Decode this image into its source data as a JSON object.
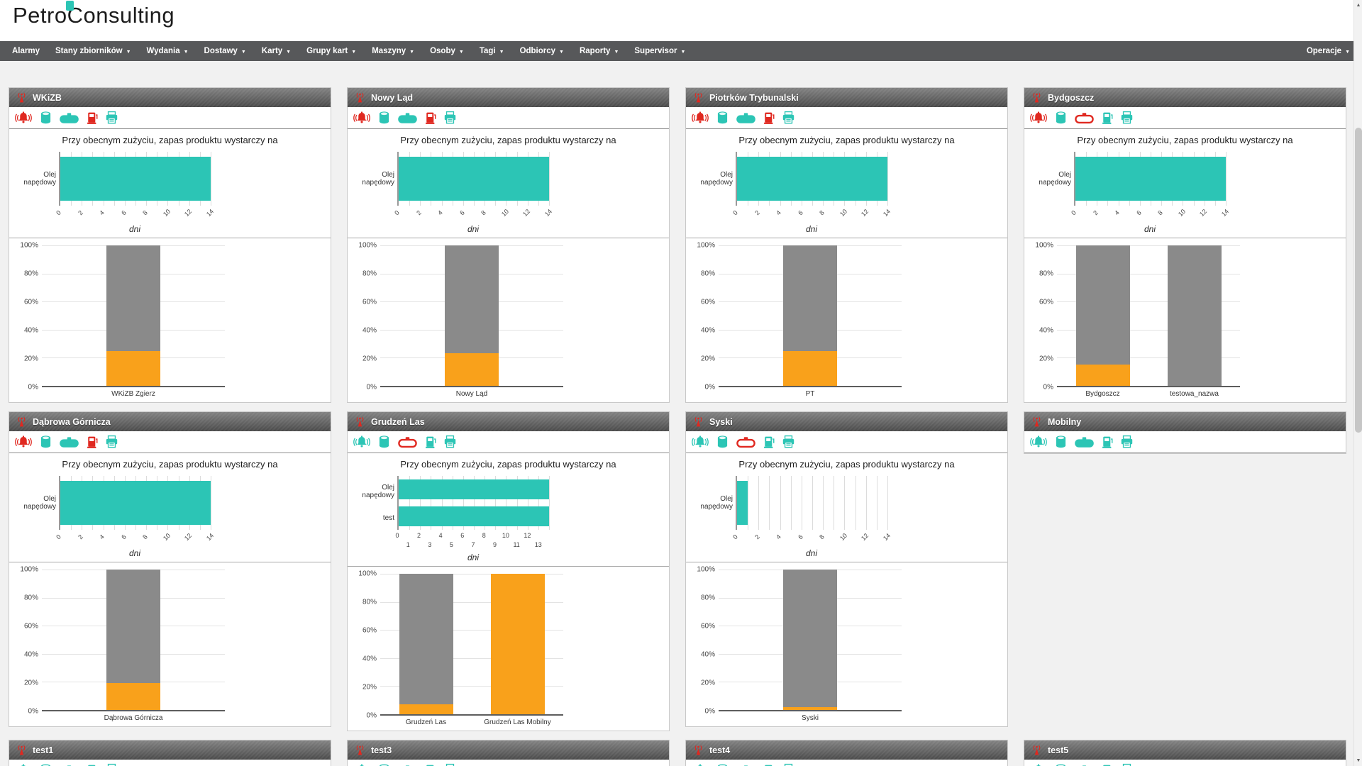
{
  "brand": {
    "name": "PetroConsulting"
  },
  "nav": {
    "caret": "▼",
    "items": [
      {
        "id": "alarmy",
        "label": "Alarmy",
        "dropdown": false
      },
      {
        "id": "stany-zbiornikow",
        "label": "Stany zbiorników",
        "dropdown": true
      },
      {
        "id": "wydania",
        "label": "Wydania",
        "dropdown": true
      },
      {
        "id": "dostawy",
        "label": "Dostawy",
        "dropdown": true
      },
      {
        "id": "karty",
        "label": "Karty",
        "dropdown": true
      },
      {
        "id": "grupy-kart",
        "label": "Grupy kart",
        "dropdown": true
      },
      {
        "id": "maszyny",
        "label": "Maszyny",
        "dropdown": true
      },
      {
        "id": "osoby",
        "label": "Osoby",
        "dropdown": true
      },
      {
        "id": "tagi",
        "label": "Tagi",
        "dropdown": true
      },
      {
        "id": "odbiorcy",
        "label": "Odbiorcy",
        "dropdown": true
      },
      {
        "id": "raporty",
        "label": "Raporty",
        "dropdown": true
      },
      {
        "id": "supervisor",
        "label": "Supervisor",
        "dropdown": true
      }
    ],
    "right_item": {
      "id": "operacje",
      "label": "Operacje",
      "dropdown": true
    }
  },
  "shared": {
    "days_title": "Przy obecnym zużyciu, zapas produktu wystarczy na",
    "days_xlabel": "dni",
    "pct_ticks": [
      "0%",
      "20%",
      "40%",
      "60%",
      "80%",
      "100%"
    ]
  },
  "colors": {
    "teal": "#2cc5b5",
    "orange": "#f9a11b",
    "bar_gray": "#8a8a8a",
    "alert_red": "#e02820",
    "nav_bg": "#57585a"
  },
  "ui": {
    "scroll_up": "▲",
    "scroll_down": "▼"
  },
  "panels": [
    {
      "id": "wkizb",
      "title": "WKiZB",
      "icons": [
        {
          "n": "alarm-bell",
          "c": "red"
        },
        {
          "n": "vertical-tank",
          "c": "teal"
        },
        {
          "n": "horizontal-tank",
          "c": "teal"
        },
        {
          "n": "fuel-dispenser",
          "c": "red"
        },
        {
          "n": "printer",
          "c": "teal"
        }
      ],
      "days_chart": {
        "bars": [
          {
            "label": "Olej napędowy",
            "days": 14
          }
        ],
        "max": 14,
        "ticks": [
          0,
          2,
          4,
          6,
          8,
          10,
          12,
          14
        ],
        "tick_style": "rotated"
      },
      "fill_chart": {
        "bars": [
          {
            "label": "WKiZB Zgierz",
            "pct": 25
          }
        ]
      }
    },
    {
      "id": "nowy-lad",
      "title": "Nowy Ląd",
      "icons": [
        {
          "n": "alarm-bell",
          "c": "red"
        },
        {
          "n": "vertical-tank",
          "c": "teal"
        },
        {
          "n": "horizontal-tank",
          "c": "teal"
        },
        {
          "n": "fuel-dispenser",
          "c": "red"
        },
        {
          "n": "printer",
          "c": "teal"
        }
      ],
      "days_chart": {
        "bars": [
          {
            "label": "Olej napędowy",
            "days": 14
          }
        ],
        "max": 14,
        "ticks": [
          0,
          2,
          4,
          6,
          8,
          10,
          12,
          14
        ],
        "tick_style": "rotated"
      },
      "fill_chart": {
        "bars": [
          {
            "label": "Nowy Ląd",
            "pct": 23
          }
        ]
      }
    },
    {
      "id": "piotrkow-trybunalski",
      "title": "Piotrków Trybunalski",
      "icons": [
        {
          "n": "alarm-bell",
          "c": "red"
        },
        {
          "n": "vertical-tank",
          "c": "teal"
        },
        {
          "n": "horizontal-tank",
          "c": "teal"
        },
        {
          "n": "fuel-dispenser",
          "c": "red"
        },
        {
          "n": "printer",
          "c": "teal"
        }
      ],
      "days_chart": {
        "bars": [
          {
            "label": "Olej napędowy",
            "days": 14
          }
        ],
        "max": 14,
        "ticks": [
          0,
          2,
          4,
          6,
          8,
          10,
          12,
          14
        ],
        "tick_style": "rotated"
      },
      "fill_chart": {
        "bars": [
          {
            "label": "PT",
            "pct": 25
          }
        ]
      }
    },
    {
      "id": "bydgoszcz",
      "title": "Bydgoszcz",
      "icons": [
        {
          "n": "alarm-bell",
          "c": "red"
        },
        {
          "n": "vertical-tank",
          "c": "teal"
        },
        {
          "n": "horizontal-tank",
          "c": "red"
        },
        {
          "n": "fuel-dispenser",
          "c": "teal"
        },
        {
          "n": "printer",
          "c": "teal"
        }
      ],
      "days_chart": {
        "bars": [
          {
            "label": "Olej napędowy",
            "days": 14
          }
        ],
        "max": 14,
        "ticks": [
          0,
          2,
          4,
          6,
          8,
          10,
          12,
          14
        ],
        "tick_style": "rotated"
      },
      "fill_chart": {
        "bars": [
          {
            "label": "Bydgoszcz",
            "pct": 15
          },
          {
            "label": "testowa_nazwa",
            "pct": 0
          }
        ]
      }
    },
    {
      "id": "dabrowa-gornicza",
      "title": "Dąbrowa Górnicza",
      "icons": [
        {
          "n": "alarm-bell",
          "c": "red"
        },
        {
          "n": "vertical-tank",
          "c": "teal"
        },
        {
          "n": "horizontal-tank",
          "c": "teal"
        },
        {
          "n": "fuel-dispenser",
          "c": "red"
        },
        {
          "n": "printer",
          "c": "teal"
        }
      ],
      "days_chart": {
        "bars": [
          {
            "label": "Olej napędowy",
            "days": 14
          }
        ],
        "max": 14,
        "ticks": [
          0,
          2,
          4,
          6,
          8,
          10,
          12,
          14
        ],
        "tick_style": "rotated"
      },
      "fill_chart": {
        "bars": [
          {
            "label": "Dąbrowa Górnicza",
            "pct": 19
          }
        ]
      }
    },
    {
      "id": "grudzen-las",
      "title": "Grudzeń Las",
      "icons": [
        {
          "n": "alarm-bell",
          "c": "teal"
        },
        {
          "n": "vertical-tank",
          "c": "teal"
        },
        {
          "n": "horizontal-tank",
          "c": "red"
        },
        {
          "n": "fuel-dispenser",
          "c": "teal"
        },
        {
          "n": "printer",
          "c": "teal"
        }
      ],
      "days_chart": {
        "bars": [
          {
            "label": "Olej napędowy",
            "days": 14
          },
          {
            "label": "test",
            "days": 14
          }
        ],
        "max": 14,
        "ticks": [
          0,
          1,
          2,
          3,
          4,
          5,
          6,
          7,
          8,
          9,
          10,
          11,
          12,
          13
        ],
        "tick_style": "staggered"
      },
      "fill_chart": {
        "bars": [
          {
            "label": "Grudzeń Las",
            "pct": 7
          },
          {
            "label": "Grudzeń Las Mobilny",
            "pct": 100
          }
        ]
      }
    },
    {
      "id": "syski",
      "title": "Syski",
      "icons": [
        {
          "n": "alarm-bell",
          "c": "teal"
        },
        {
          "n": "vertical-tank",
          "c": "teal"
        },
        {
          "n": "horizontal-tank",
          "c": "red"
        },
        {
          "n": "fuel-dispenser",
          "c": "teal"
        },
        {
          "n": "printer",
          "c": "teal"
        }
      ],
      "days_chart": {
        "bars": [
          {
            "label": "Olej napędowy",
            "days": 1
          }
        ],
        "max": 14,
        "ticks": [
          0,
          2,
          4,
          6,
          8,
          10,
          12,
          14
        ],
        "tick_style": "rotated"
      },
      "fill_chart": {
        "bars": [
          {
            "label": "Syski",
            "pct": 2
          }
        ]
      }
    },
    {
      "id": "mobilny",
      "title": "Mobilny",
      "icons": [
        {
          "n": "alarm-bell",
          "c": "teal"
        },
        {
          "n": "vertical-tank",
          "c": "teal"
        },
        {
          "n": "horizontal-tank",
          "c": "teal"
        },
        {
          "n": "fuel-dispenser",
          "c": "teal"
        },
        {
          "n": "printer",
          "c": "teal"
        }
      ],
      "days_chart": null,
      "fill_chart": null
    },
    {
      "id": "test1",
      "title": "test1",
      "icons": [
        {
          "n": "alarm-bell",
          "c": "teal"
        },
        {
          "n": "vertical-tank",
          "c": "teal"
        },
        {
          "n": "horizontal-tank",
          "c": "teal"
        },
        {
          "n": "fuel-dispenser",
          "c": "teal"
        },
        {
          "n": "printer",
          "c": "teal"
        }
      ],
      "days_chart": null,
      "fill_chart": null
    },
    {
      "id": "test3",
      "title": "test3",
      "icons": [
        {
          "n": "alarm-bell",
          "c": "teal"
        },
        {
          "n": "vertical-tank",
          "c": "teal"
        },
        {
          "n": "horizontal-tank",
          "c": "teal"
        },
        {
          "n": "fuel-dispenser",
          "c": "teal"
        },
        {
          "n": "printer",
          "c": "teal"
        }
      ],
      "days_chart": null,
      "fill_chart": null
    },
    {
      "id": "test4",
      "title": "test4",
      "icons": [
        {
          "n": "alarm-bell",
          "c": "teal"
        },
        {
          "n": "vertical-tank",
          "c": "teal"
        },
        {
          "n": "horizontal-tank",
          "c": "teal"
        },
        {
          "n": "fuel-dispenser",
          "c": "teal"
        },
        {
          "n": "printer",
          "c": "teal"
        }
      ],
      "days_chart": null,
      "fill_chart": null
    },
    {
      "id": "test5",
      "title": "test5",
      "icons": [
        {
          "n": "alarm-bell",
          "c": "teal"
        },
        {
          "n": "vertical-tank",
          "c": "teal"
        },
        {
          "n": "horizontal-tank",
          "c": "teal"
        },
        {
          "n": "fuel-dispenser",
          "c": "teal"
        },
        {
          "n": "printer",
          "c": "teal"
        }
      ],
      "days_chart": null,
      "fill_chart": null
    }
  ]
}
